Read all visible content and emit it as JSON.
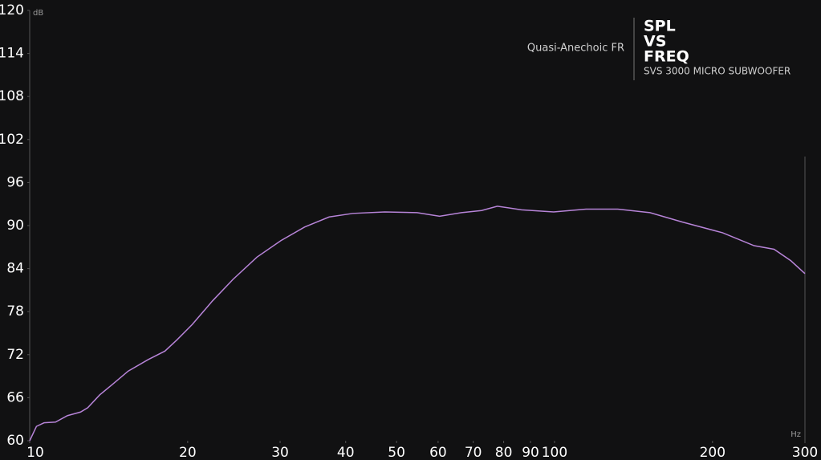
{
  "chart_data": {
    "type": "line",
    "title_lines": [
      "SPL",
      "VS",
      "FREQ"
    ],
    "subtitle": "SVS 3000 MICRO SUBWOOFER",
    "y_label": "dB",
    "x_label": "Hz",
    "xscale": "log",
    "xlim": [
      10,
      300
    ],
    "ylim": [
      60,
      120
    ],
    "xticks": [
      10,
      20,
      30,
      40,
      50,
      60,
      70,
      80,
      90,
      100,
      200,
      300
    ],
    "yticks": [
      60,
      66,
      72,
      78,
      84,
      90,
      96,
      102,
      108,
      114,
      120
    ],
    "x": [
      10,
      10.3,
      10.65,
      11.2,
      11.8,
      12.5,
      12.9,
      13.6,
      14.4,
      15.4,
      16.8,
      18.1,
      19.1,
      20.4,
      22.3,
      24.4,
      27.1,
      30.1,
      33.4,
      37.2,
      41.3,
      47.5,
      54.7,
      60.4,
      66.5,
      72.6,
      77.8,
      86.5,
      99.6,
      114.8,
      132,
      152,
      175,
      209,
      240,
      262,
      282,
      300
    ],
    "series": [
      {
        "name": "Quasi-Anechoic FR",
        "color": "#b784d8",
        "values": [
          60,
          62.0,
          62.5,
          62.6,
          63.5,
          64.0,
          64.6,
          66.4,
          67.9,
          69.7,
          71.3,
          72.5,
          74.1,
          76.2,
          79.5,
          82.5,
          85.6,
          87.9,
          89.8,
          91.2,
          91.7,
          91.9,
          91.8,
          91.3,
          91.8,
          92.1,
          92.7,
          92.2,
          91.9,
          92.3,
          92.3,
          91.8,
          90.5,
          89.0,
          87.2,
          86.7,
          85.1,
          83.3
        ]
      }
    ]
  }
}
